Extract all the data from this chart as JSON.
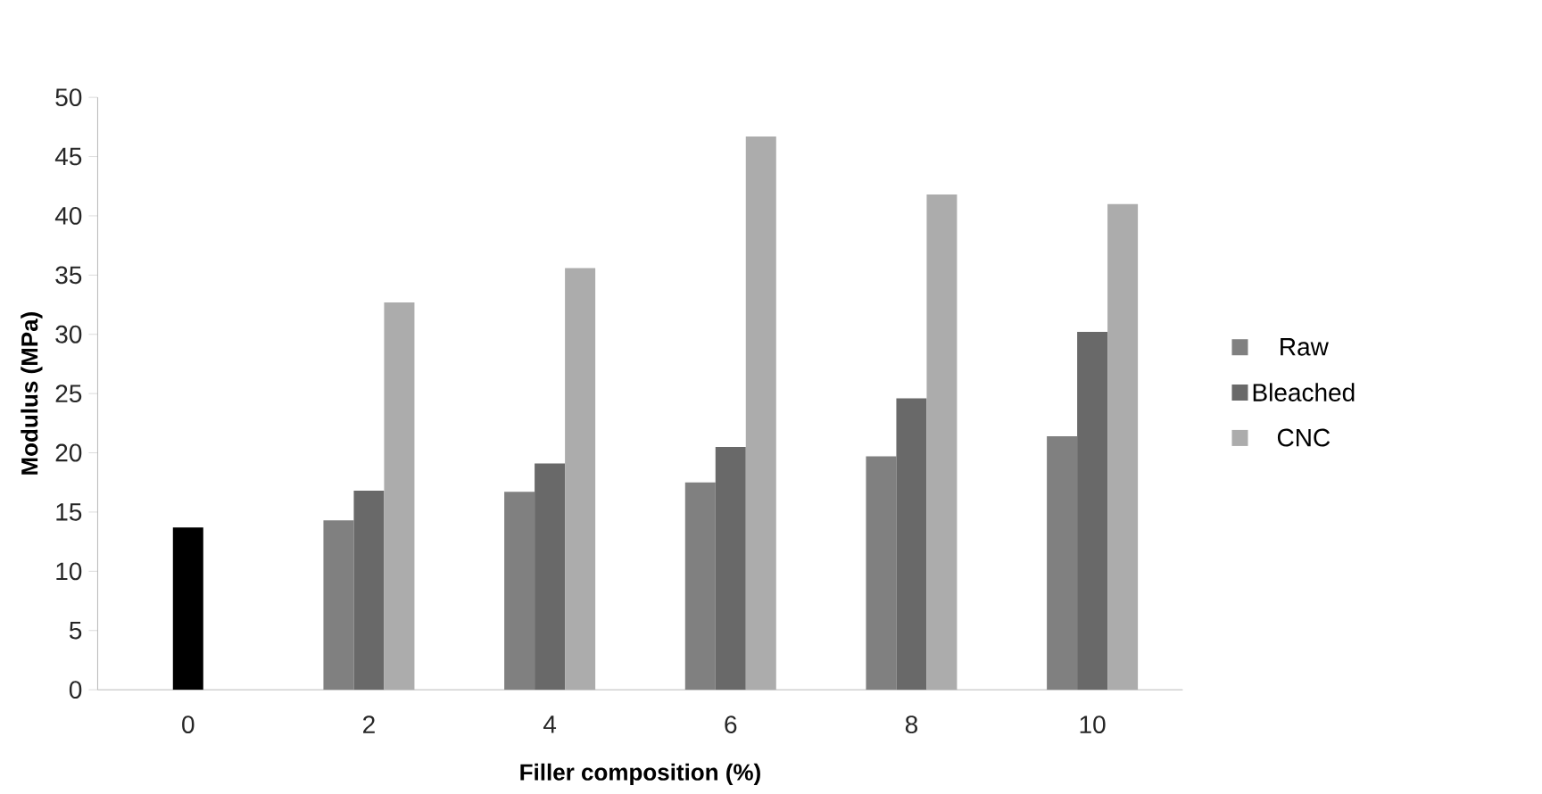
{
  "chart_data": {
    "type": "bar",
    "xlabel": "Filler composition (%)",
    "ylabel": "Modulus (MPa)",
    "categories": [
      "0",
      "2",
      "4",
      "6",
      "8",
      "10"
    ],
    "series": [
      {
        "name": "Raw",
        "color": "#808080",
        "values": [
          null,
          14.3,
          16.7,
          17.5,
          19.7,
          21.4
        ]
      },
      {
        "name": "Bleached",
        "color": "#696969",
        "values": [
          null,
          16.8,
          19.1,
          20.5,
          24.6,
          30.2
        ]
      },
      {
        "name": "CNC",
        "color": "#acacac",
        "values": [
          null,
          32.7,
          35.6,
          46.7,
          41.8,
          41.0
        ]
      },
      {
        "color": "#000000",
        "values": [
          13.7,
          null,
          null,
          null,
          null,
          null
        ]
      }
    ],
    "ylim": [
      0,
      50
    ],
    "yticks": [
      0,
      5,
      10,
      15,
      20,
      25,
      30,
      35,
      40,
      45,
      50
    ],
    "grid": false,
    "legend": "right"
  }
}
